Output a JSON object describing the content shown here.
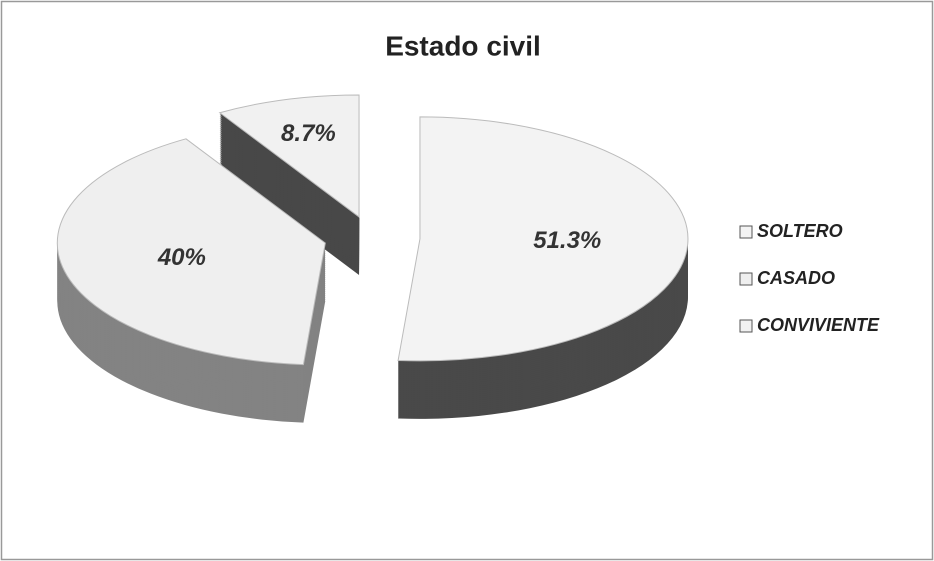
{
  "chart_data": {
    "type": "pie",
    "title": "Estado civil",
    "categories": [
      "SOLTERO",
      "CASADO",
      "CONVIVIENTE"
    ],
    "values": [
      51.3,
      40,
      8.7
    ],
    "value_labels": [
      "51.3%",
      "40%",
      "8.7%"
    ],
    "colors": [
      "#f3f3f3",
      "#efefef",
      "#f1f1f1"
    ],
    "legend": "right"
  }
}
